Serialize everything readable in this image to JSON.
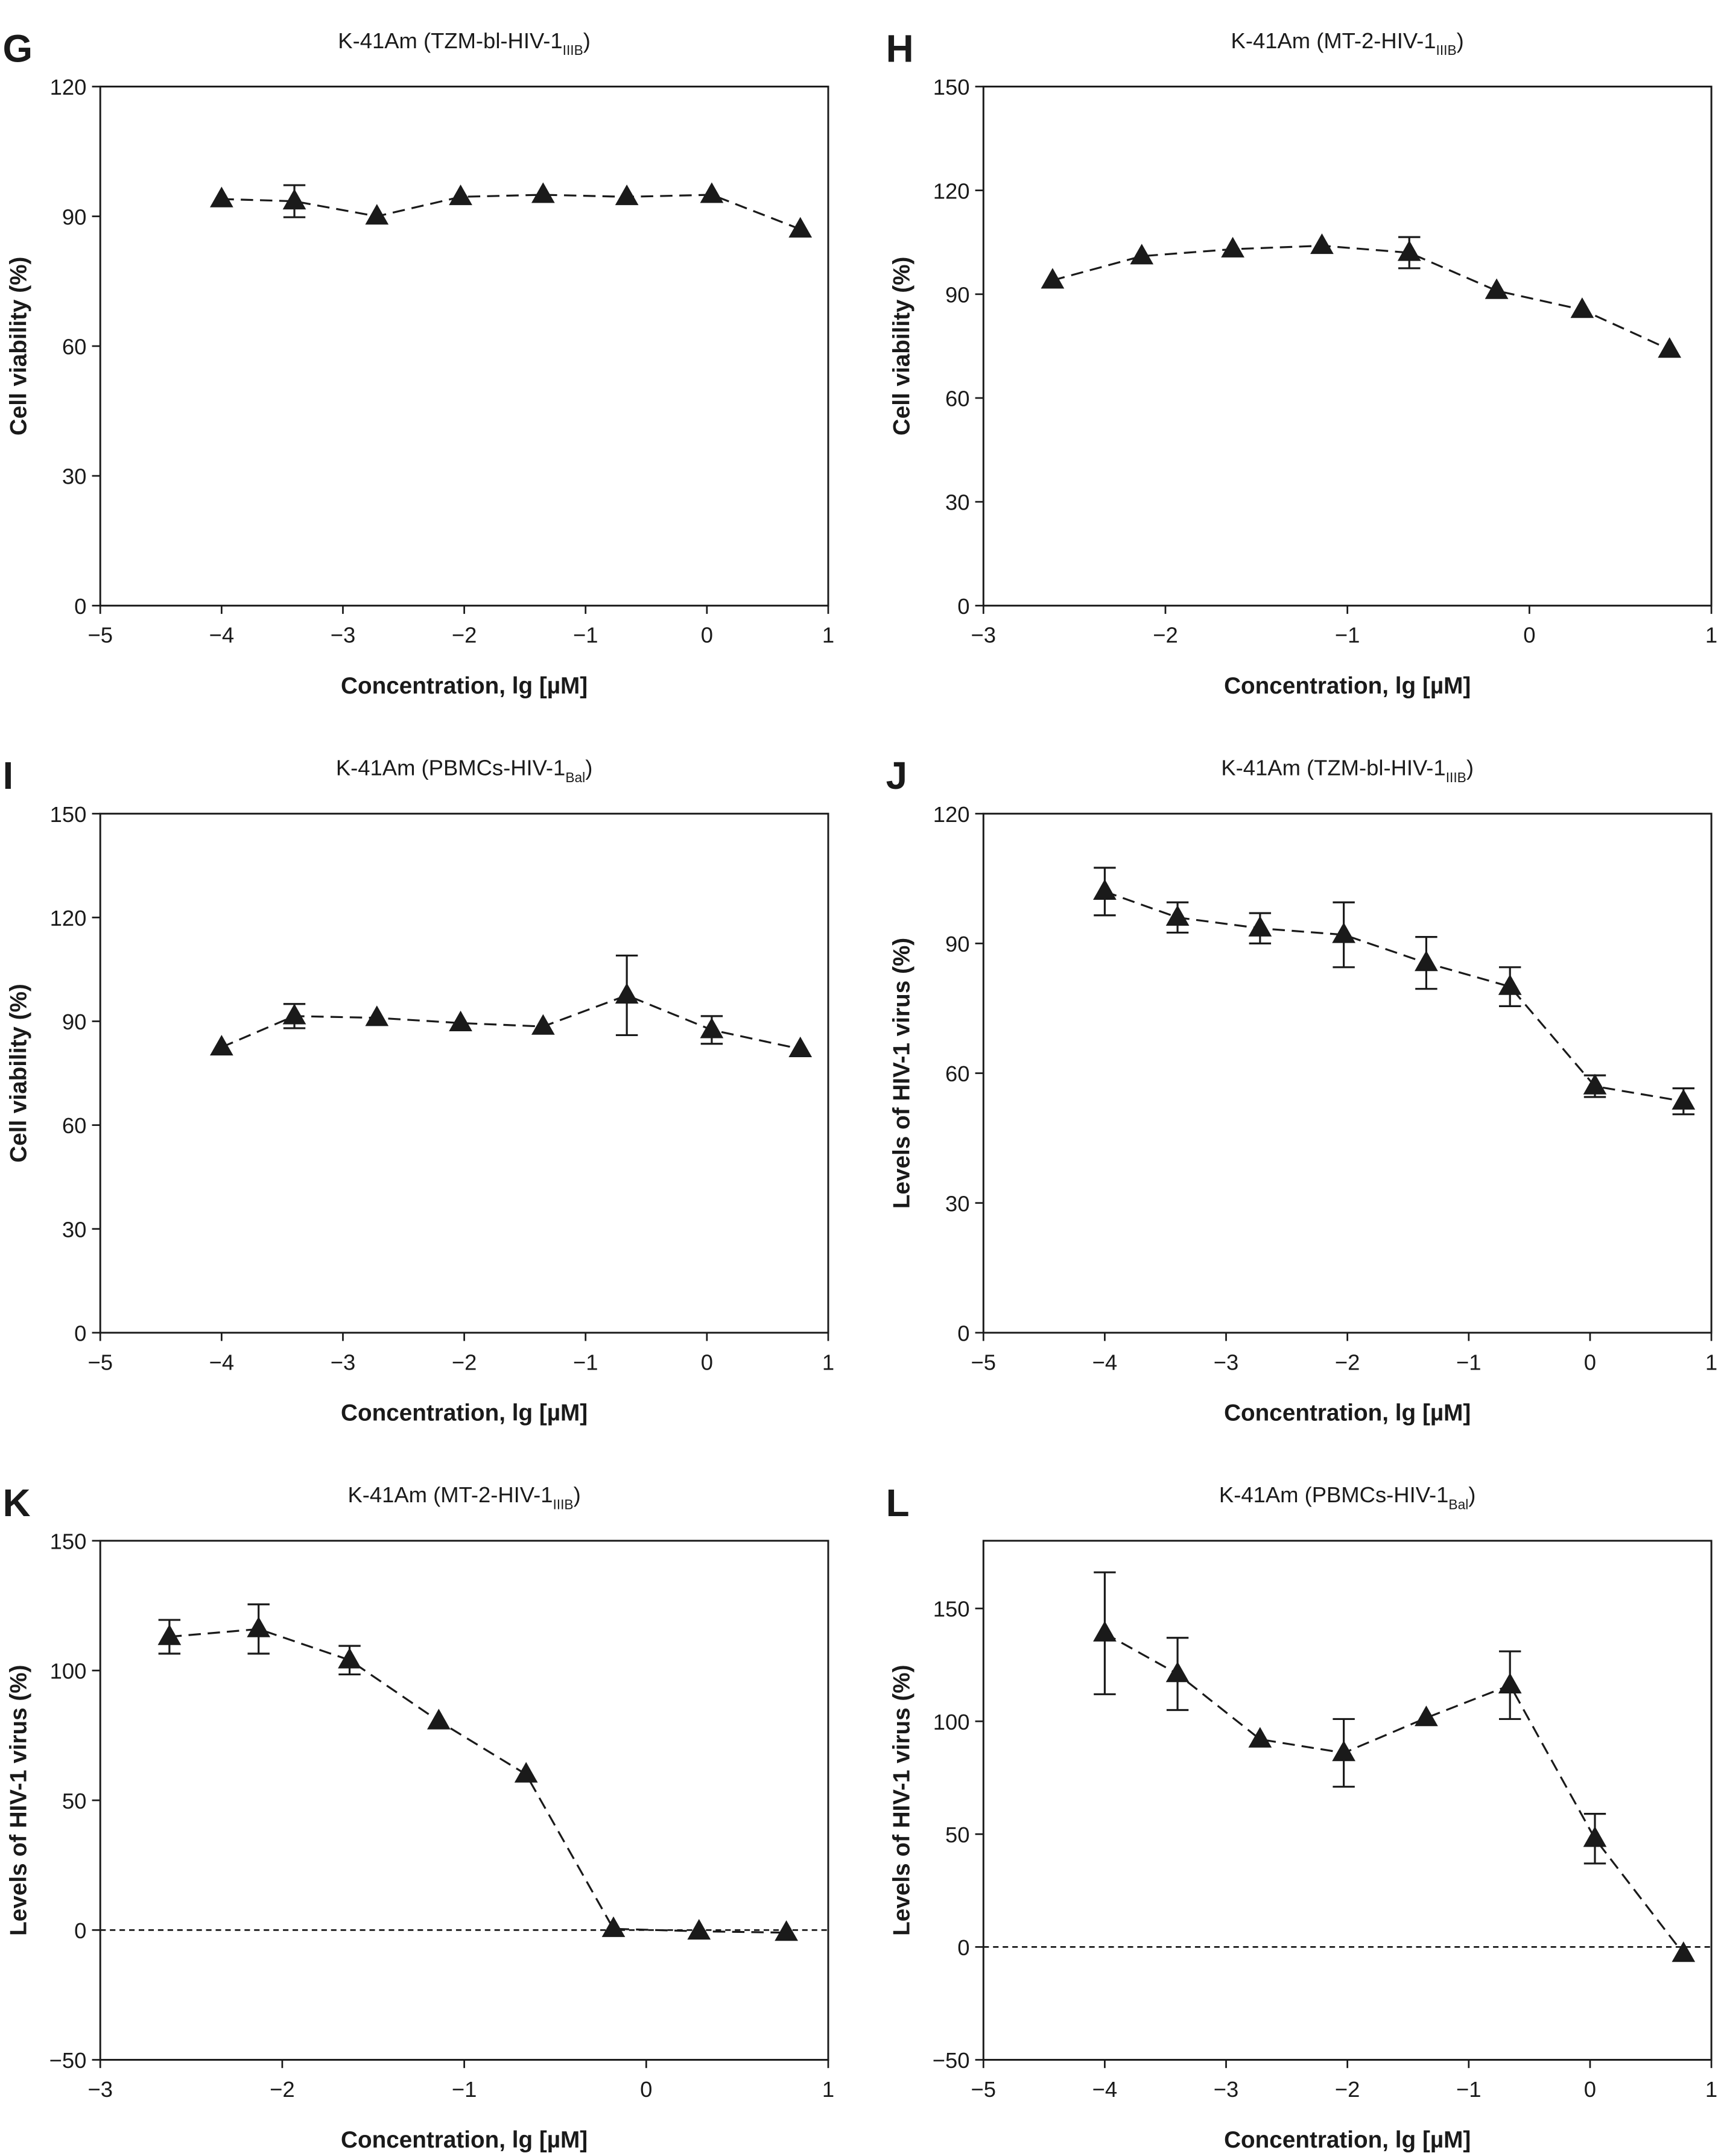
{
  "chart_data": [
    {
      "panel": "G",
      "type": "line",
      "title": "K-41Am (TZM-bl-HIV-1",
      "title_sub": "IIIB",
      "title_end": ")",
      "xlabel": "Concentration, lg [µM]",
      "ylabel": "Cell viability (%)",
      "xlim": [
        -5,
        1
      ],
      "ylim": [
        0,
        120
      ],
      "xticks": [
        -5,
        -4,
        -3,
        -2,
        -1,
        0,
        1
      ],
      "yticks": [
        0,
        30,
        60,
        90,
        120
      ],
      "zero_line": false,
      "x": [
        -4,
        -3.4,
        -2.72,
        -2.03,
        -1.35,
        -0.66,
        0.04,
        0.77
      ],
      "y": [
        94,
        93.5,
        90,
        94.5,
        95,
        94.5,
        95,
        87
      ],
      "err": [
        0,
        3.7,
        0,
        0,
        0,
        0,
        0,
        0
      ]
    },
    {
      "panel": "H",
      "type": "line",
      "title": "K-41Am (MT-2-HIV-1",
      "title_sub": "IIIB",
      "title_end": ")",
      "xlabel": "Concentration, lg [µM]",
      "ylabel": "Cell viability (%)",
      "xlim": [
        -3,
        1
      ],
      "ylim": [
        0,
        150
      ],
      "xticks": [
        -3,
        -2,
        -1,
        0,
        1
      ],
      "yticks": [
        0,
        30,
        60,
        90,
        120,
        150
      ],
      "zero_line": false,
      "x": [
        -2.62,
        -2.13,
        -1.63,
        -1.14,
        -0.66,
        -0.18,
        0.29,
        0.77
      ],
      "y": [
        94,
        101,
        103,
        104,
        102,
        91,
        85.5,
        74
      ],
      "err": [
        0,
        0,
        0,
        0,
        4.5,
        0,
        0,
        0
      ]
    },
    {
      "panel": "I",
      "type": "line",
      "title": "K-41Am (PBMCs-HIV-1",
      "title_sub": "Bal",
      "title_end": ")",
      "xlabel": "Concentration, lg [µM]",
      "ylabel": "Cell viability (%)",
      "xlim": [
        -5,
        1
      ],
      "ylim": [
        0,
        150
      ],
      "xticks": [
        -5,
        -4,
        -3,
        -2,
        -1,
        0,
        1
      ],
      "yticks": [
        0,
        30,
        60,
        90,
        120,
        150
      ],
      "zero_line": false,
      "x": [
        -4,
        -3.4,
        -2.72,
        -2.03,
        -1.35,
        -0.66,
        0.04,
        0.77
      ],
      "y": [
        82.5,
        91.5,
        91,
        89.5,
        88.5,
        97.5,
        87.5,
        82
      ],
      "err": [
        0,
        3.5,
        0,
        0,
        0,
        11.5,
        4,
        0
      ]
    },
    {
      "panel": "J",
      "type": "line",
      "title": "K-41Am (TZM-bl-HIV-1",
      "title_sub": "IIIB",
      "title_end": ")",
      "xlabel": "Concentration, lg [µM]",
      "ylabel": "Levels of HIV-1 virus (%)",
      "xlim": [
        -5,
        1
      ],
      "ylim": [
        0,
        120
      ],
      "xticks": [
        -5,
        -4,
        -3,
        -2,
        -1,
        0,
        1
      ],
      "yticks": [
        0,
        30,
        60,
        90,
        120
      ],
      "zero_line": false,
      "x": [
        -4,
        -3.4,
        -2.72,
        -2.03,
        -1.35,
        -0.66,
        0.04,
        0.77
      ],
      "y": [
        102,
        96,
        93.5,
        92,
        85.5,
        80,
        57,
        53.5
      ],
      "err": [
        5.5,
        3.5,
        3.5,
        7.5,
        6,
        4.5,
        2.5,
        3
      ]
    },
    {
      "panel": "K",
      "type": "line",
      "title": "K-41Am (MT-2-HIV-1",
      "title_sub": "IIIB",
      "title_end": ")",
      "xlabel": "Concentration, lg [µM]",
      "ylabel": "Levels of HIV-1 virus (%)",
      "xlim": [
        -3,
        1
      ],
      "ylim": [
        -50,
        150
      ],
      "xticks": [
        -3,
        -2,
        -1,
        0,
        1
      ],
      "yticks": [
        -50,
        0,
        50,
        100,
        150
      ],
      "zero_line": true,
      "x": [
        -2.62,
        -2.13,
        -1.63,
        -1.14,
        -0.66,
        -0.18,
        0.29,
        0.77
      ],
      "y": [
        113,
        116,
        104,
        80.5,
        60,
        0.5,
        -0.5,
        -1
      ],
      "err": [
        6.5,
        9.5,
        5.5,
        0,
        0,
        0,
        0,
        0
      ]
    },
    {
      "panel": "L",
      "type": "line",
      "title": "K-41Am (PBMCs-HIV-1",
      "title_sub": "Bal",
      "title_end": ")",
      "xlabel": "Concentration, lg [µM]",
      "ylabel": "Levels of HIV-1 virus (%)",
      "xlim": [
        -5,
        1
      ],
      "ylim": [
        -50,
        180
      ],
      "xticks": [
        -5,
        -4,
        -3,
        -2,
        -1,
        0,
        1
      ],
      "yticks": [
        -50,
        0,
        50,
        100,
        150
      ],
      "zero_line": true,
      "x": [
        -4,
        -3.4,
        -2.72,
        -2.03,
        -1.35,
        -0.66,
        0.04,
        0.77
      ],
      "y": [
        139,
        121,
        92,
        86,
        101.5,
        116,
        48,
        -3
      ],
      "err": [
        27,
        16,
        0,
        15,
        0,
        15,
        11,
        0
      ]
    }
  ],
  "colors": {
    "ink": "#1a1a1a",
    "background": "#ffffff"
  }
}
